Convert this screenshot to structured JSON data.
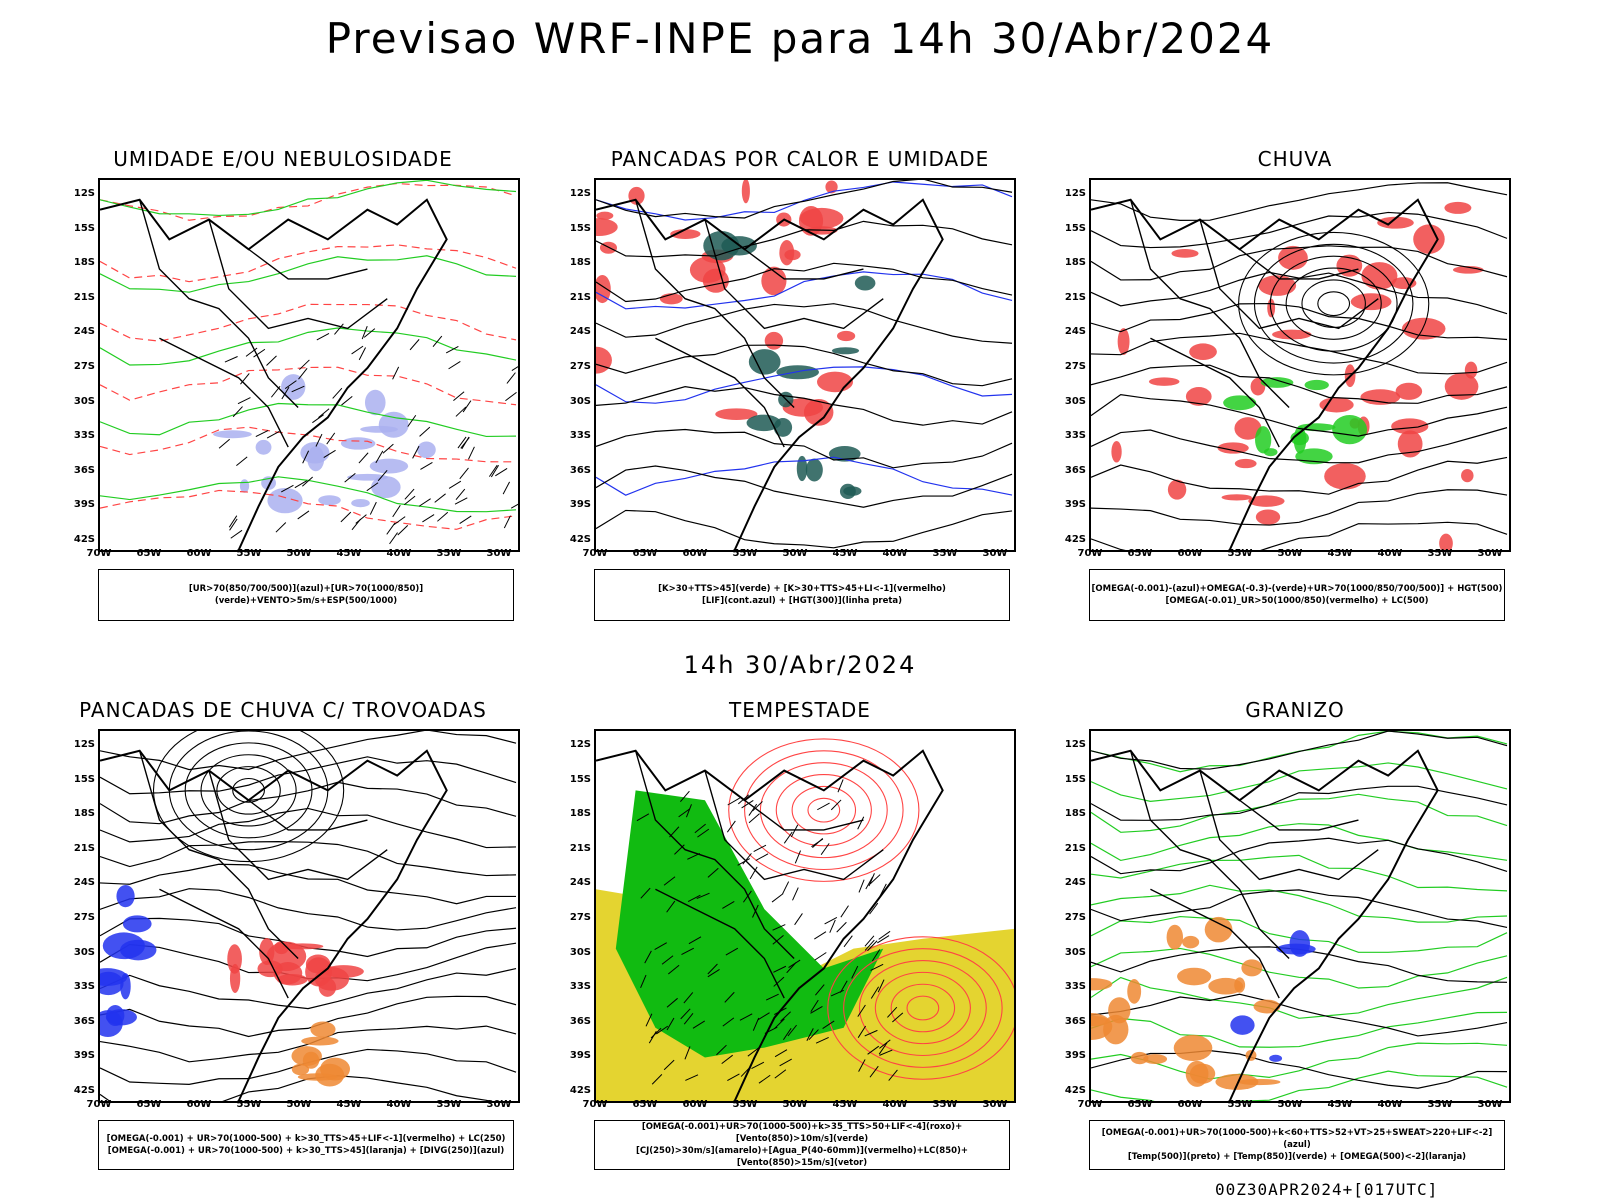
{
  "title": "Previsao WRF-INPE  para 14h 30/Abr/2024",
  "mid_time": "14h 30/Abr/2024",
  "footer": "00Z30APR2024+[017UTC]",
  "axes": {
    "lat_labels": [
      "12S",
      "15S",
      "18S",
      "21S",
      "24S",
      "27S",
      "30S",
      "33S",
      "36S",
      "39S",
      "42S"
    ],
    "lon_labels": [
      "70W",
      "65W",
      "60W",
      "55W",
      "50W",
      "45W",
      "40W",
      "35W",
      "30W"
    ]
  },
  "panels": [
    {
      "title": "UMIDADE E/OU NEBULOSIDADE",
      "legend": [
        "[UR>70(850/700/500)](azul)+[UR>70(1000/850)](verde)+VENTO>5m/s+ESP(500/1000)"
      ],
      "colors": [
        "#aab0f0",
        "#22cc22",
        "#ff4444"
      ]
    },
    {
      "title": "PANCADAS POR CALOR E UMIDADE",
      "legend": [
        "[K>30+TTS>45](verde) + [K>30+TTS>45+LI<-1](vermelho)",
        "[LIF](cont.azul) + [HGT(300)](linha preta)"
      ],
      "colors": [
        "#f04444",
        "#1f5a55",
        "#2233ee"
      ]
    },
    {
      "title": "CHUVA",
      "legend": [
        "[OMEGA(-0.001)-(azul)+OMEGA(-0.3)-(verde)+UR>70(1000/850/700/500)] + HGT(500)",
        "[OMEGA(-0.01)_UR>50(1000/850)(vermelho) + LC(500)"
      ],
      "colors": [
        "#f04444",
        "#22cc22",
        "#2233ee"
      ]
    },
    {
      "title": "PANCADAS DE CHUVA C/ TROVOADAS",
      "legend": [
        "[OMEGA(-0.001) + UR>70(1000-500) + k>30_TTS>45+LIF<-1](vermelho) + LC(250)",
        "[OMEGA(-0.001) + UR>70(1000-500) + k>30_TTS>45](laranja) + [DIVG(250)](azul)"
      ],
      "colors": [
        "#f04444",
        "#ee8833",
        "#2233ee"
      ]
    },
    {
      "title": "TEMPESTADE",
      "legend": [
        "[OMEGA(-0.001)+UR>70(1000-500)+k>35_TTS>50+LIF<-4](roxo)+[Vento(850)>10m/s](verde)",
        "[CJ(250)>30m/s](amarelo)+[Agua_P(40-60mm)](vermelho)+LC(850)+[Vento(850)>15m/s](vetor)"
      ],
      "colors": [
        "#e4d430",
        "#11bb11",
        "#ff4444"
      ]
    },
    {
      "title": "GRANIZO",
      "legend": [
        "[OMEGA(-0.001)+UR>70(1000-500)+k<60+TTS>52+VT>25+SWEAT>220+LIF<-2](azul)",
        "[Temp(500)](preto) + [Temp(850)](verde) + [OMEGA(500)<-2](laranja)"
      ],
      "colors": [
        "#22cc22",
        "#ee8833",
        "#2233ee"
      ]
    }
  ]
}
